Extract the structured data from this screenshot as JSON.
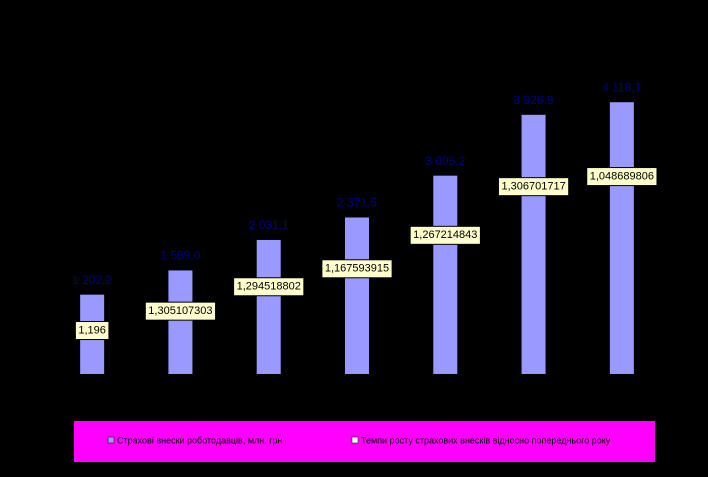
{
  "chart_data": {
    "type": "bar",
    "categories": [
      null,
      null,
      null,
      null,
      null,
      null,
      null
    ],
    "series": [
      {
        "name": "Страхові внески роботодавців, млн. грн",
        "color": "#9999ff",
        "values": [
          1202.2,
          1569.0,
          2031.1,
          2371.5,
          3005.2,
          3926.9,
          4118.1
        ],
        "value_labels": [
          "1 202,2",
          "1 569,0",
          "2 031,1",
          "2 371,5",
          "3 005,2",
          "3 926,9",
          "4 118,1"
        ]
      },
      {
        "name": "Темпи росту страхових внесків відносно попереднього року",
        "color": "#ffffff",
        "values": [
          1.196,
          1.305107303,
          1.294518802,
          1.167593915,
          1.267214843,
          1.306701717,
          1.048689806
        ],
        "value_labels": [
          "1,196",
          "1,305107303",
          "1,294518802",
          "1,167593915",
          "1,267214843",
          "1,306701717",
          "1,048689806"
        ]
      }
    ],
    "ylim": [
      0,
      5000
    ],
    "legend": "bottom"
  }
}
